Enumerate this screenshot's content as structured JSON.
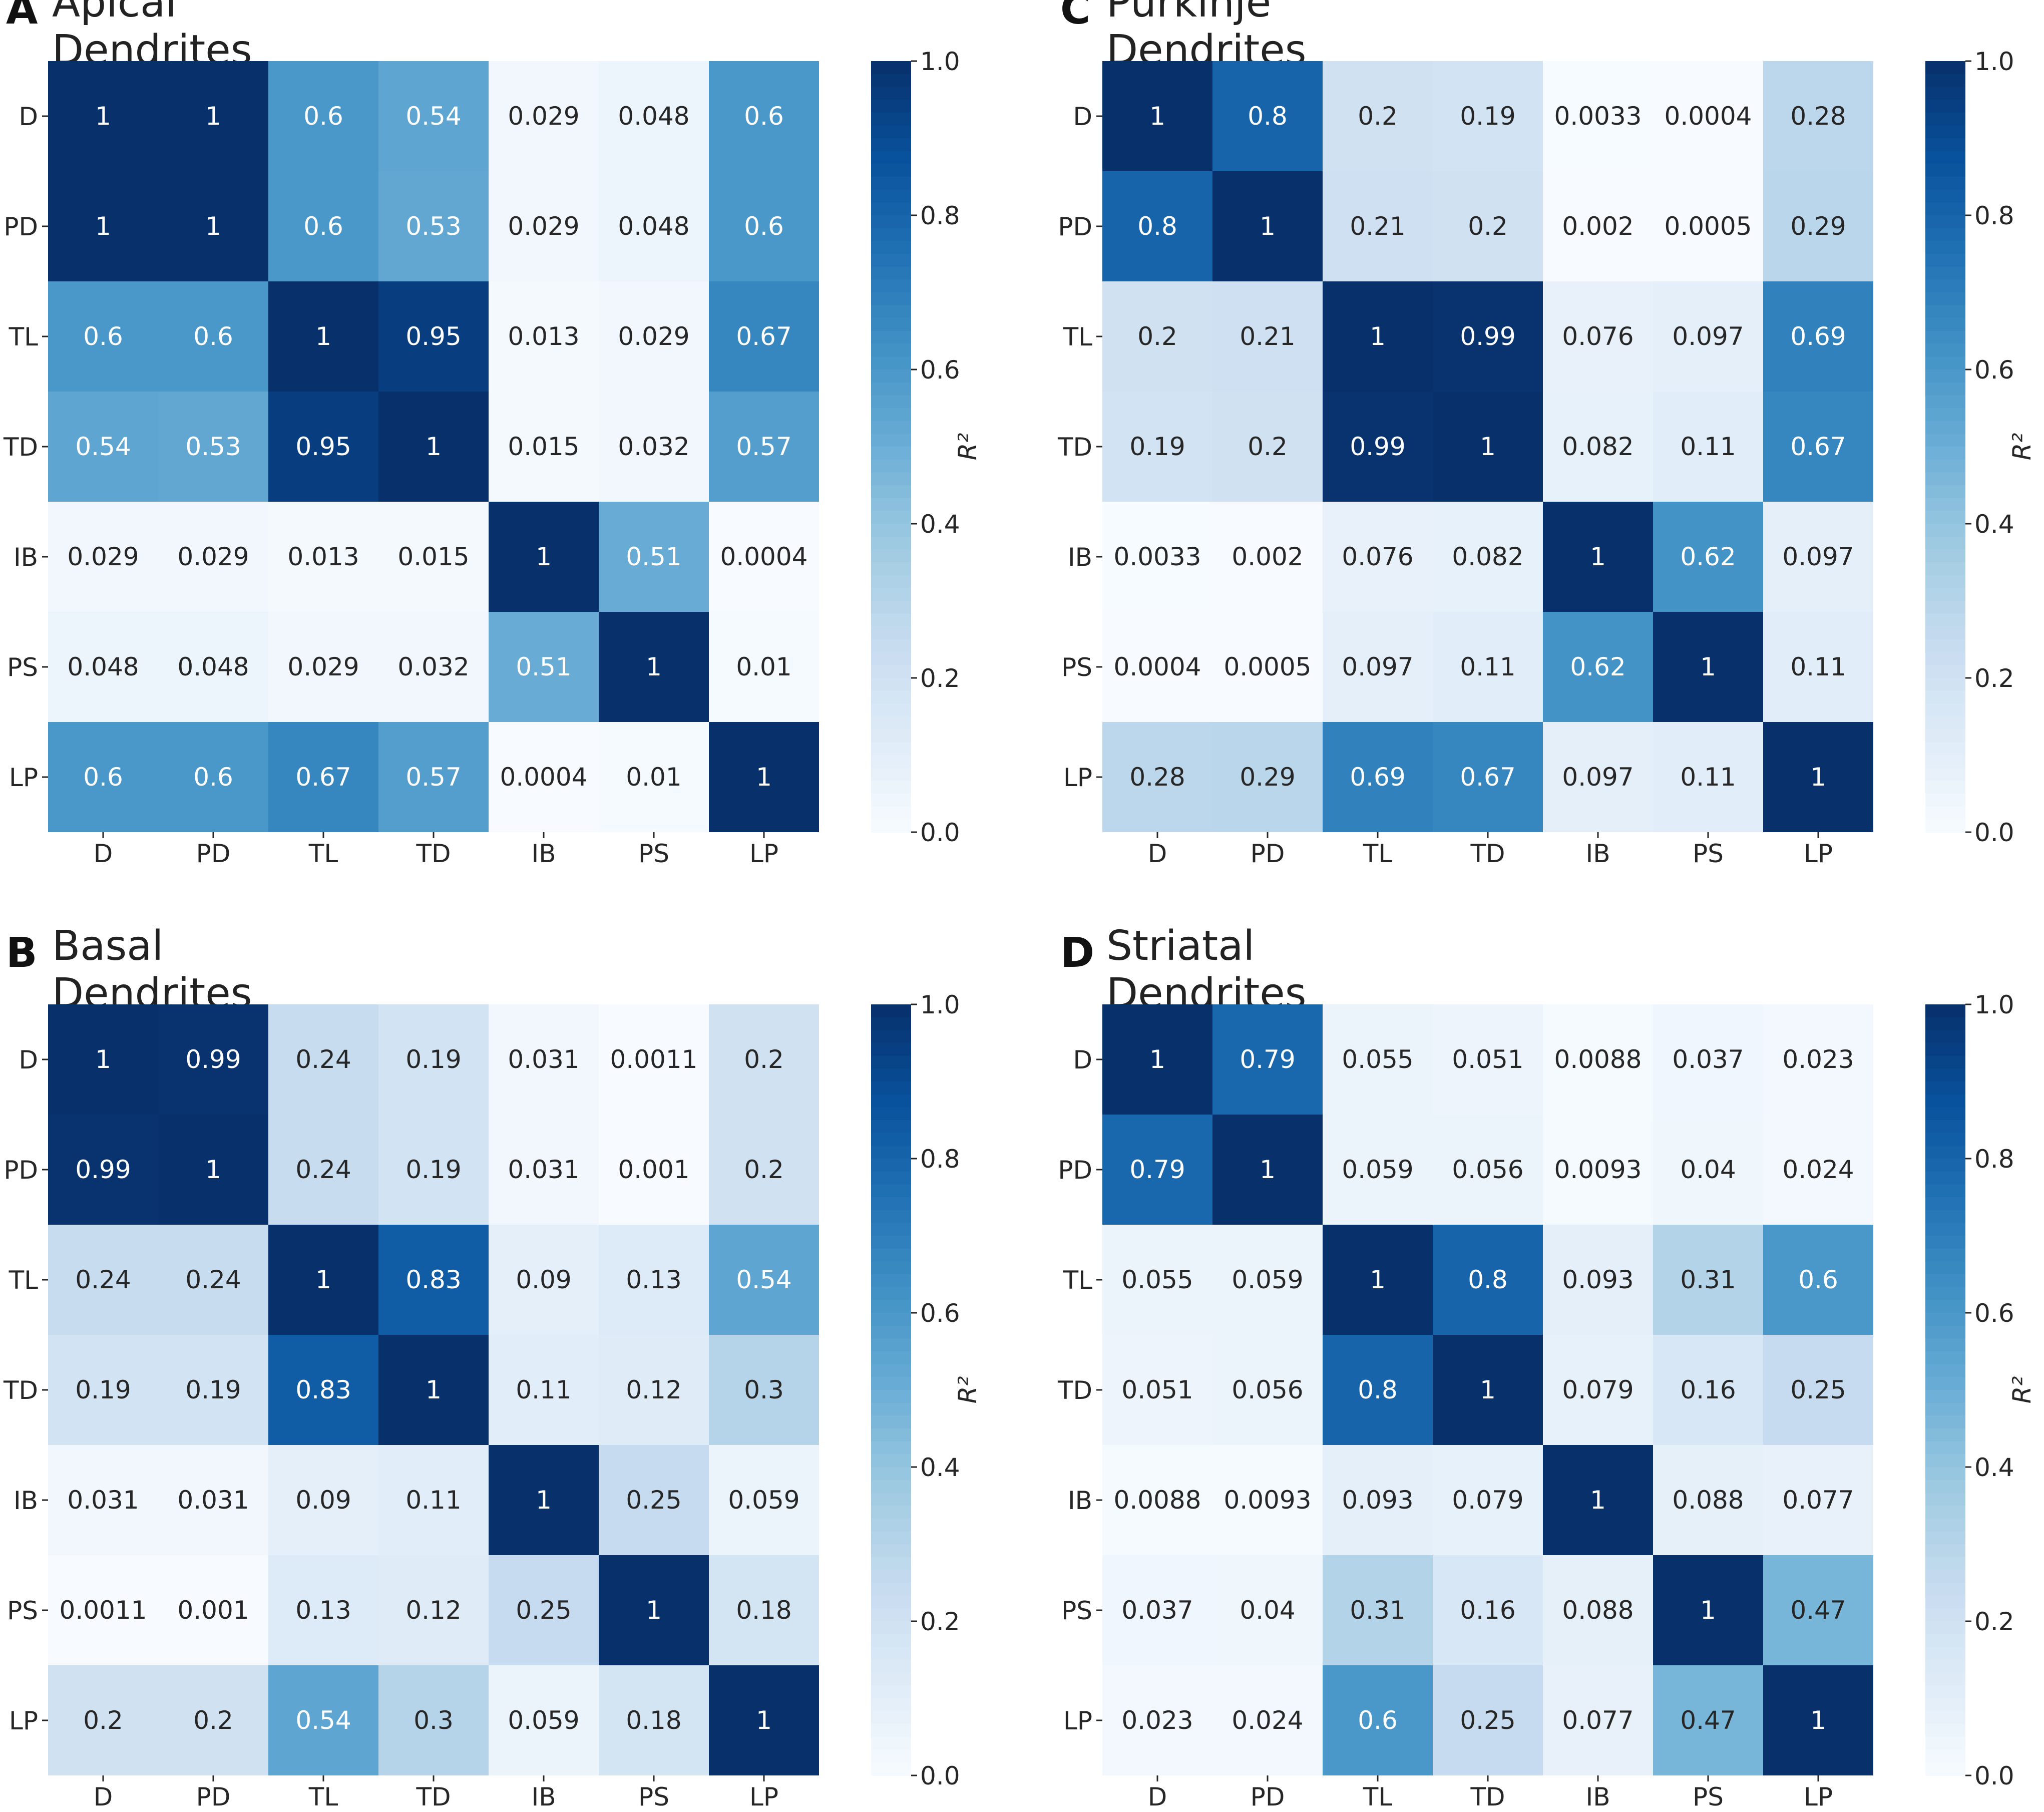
{
  "colorbar": {
    "label": "R²",
    "min": 0.0,
    "max": 1.0,
    "ticks": [
      "0.0",
      "0.2",
      "0.4",
      "0.6",
      "0.8",
      "1.0"
    ],
    "colormap": "Blues",
    "colors": [
      "#f7fbff",
      "#deebf7",
      "#c6dbef",
      "#9ecae1",
      "#6baed6",
      "#4292c6",
      "#2171b5",
      "#08519c",
      "#08306b"
    ]
  },
  "chart_data": [
    {
      "type": "heatmap",
      "letter": "A",
      "title": "Apical Dendrites",
      "x": [
        "D",
        "PD",
        "TL",
        "TD",
        "IB",
        "PS",
        "LP"
      ],
      "y": [
        "D",
        "PD",
        "TL",
        "TD",
        "IB",
        "PS",
        "LP"
      ],
      "values": [
        [
          1,
          1,
          0.6,
          0.54,
          0.029,
          0.048,
          0.6
        ],
        [
          1,
          1,
          0.6,
          0.53,
          0.029,
          0.048,
          0.6
        ],
        [
          0.6,
          0.6,
          1,
          0.95,
          0.013,
          0.029,
          0.67
        ],
        [
          0.54,
          0.53,
          0.95,
          1,
          0.015,
          0.032,
          0.57
        ],
        [
          0.029,
          0.029,
          0.013,
          0.015,
          1,
          0.51,
          0.0004
        ],
        [
          0.048,
          0.048,
          0.029,
          0.032,
          0.51,
          1,
          0.01
        ],
        [
          0.6,
          0.6,
          0.67,
          0.57,
          0.0004,
          0.01,
          1
        ]
      ],
      "labels": [
        [
          "1",
          "1",
          "0.6",
          "0.54",
          "0.029",
          "0.048",
          "0.6"
        ],
        [
          "1",
          "1",
          "0.6",
          "0.53",
          "0.029",
          "0.048",
          "0.6"
        ],
        [
          "0.6",
          "0.6",
          "1",
          "0.95",
          "0.013",
          "0.029",
          "0.67"
        ],
        [
          "0.54",
          "0.53",
          "0.95",
          "1",
          "0.015",
          "0.032",
          "0.57"
        ],
        [
          "0.029",
          "0.029",
          "0.013",
          "0.015",
          "1",
          "0.51",
          "0.0004"
        ],
        [
          "0.048",
          "0.048",
          "0.029",
          "0.032",
          "0.51",
          "1",
          "0.01"
        ],
        [
          "0.6",
          "0.6",
          "0.67",
          "0.57",
          "0.0004",
          "0.01",
          "1"
        ]
      ]
    },
    {
      "type": "heatmap",
      "letter": "B",
      "title": "Basal Dendrites",
      "x": [
        "D",
        "PD",
        "TL",
        "TD",
        "IB",
        "PS",
        "LP"
      ],
      "y": [
        "D",
        "PD",
        "TL",
        "TD",
        "IB",
        "PS",
        "LP"
      ],
      "values": [
        [
          1,
          0.99,
          0.24,
          0.19,
          0.031,
          0.0011,
          0.2
        ],
        [
          0.99,
          1,
          0.24,
          0.19,
          0.031,
          0.001,
          0.2
        ],
        [
          0.24,
          0.24,
          1,
          0.83,
          0.09,
          0.13,
          0.54
        ],
        [
          0.19,
          0.19,
          0.83,
          1,
          0.11,
          0.12,
          0.3
        ],
        [
          0.031,
          0.031,
          0.09,
          0.11,
          1,
          0.25,
          0.059
        ],
        [
          0.0011,
          0.001,
          0.13,
          0.12,
          0.25,
          1,
          0.18
        ],
        [
          0.2,
          0.2,
          0.54,
          0.3,
          0.059,
          0.18,
          1
        ]
      ],
      "labels": [
        [
          "1",
          "0.99",
          "0.24",
          "0.19",
          "0.031",
          "0.0011",
          "0.2"
        ],
        [
          "0.99",
          "1",
          "0.24",
          "0.19",
          "0.031",
          "0.001",
          "0.2"
        ],
        [
          "0.24",
          "0.24",
          "1",
          "0.83",
          "0.09",
          "0.13",
          "0.54"
        ],
        [
          "0.19",
          "0.19",
          "0.83",
          "1",
          "0.11",
          "0.12",
          "0.3"
        ],
        [
          "0.031",
          "0.031",
          "0.09",
          "0.11",
          "1",
          "0.25",
          "0.059"
        ],
        [
          "0.0011",
          "0.001",
          "0.13",
          "0.12",
          "0.25",
          "1",
          "0.18"
        ],
        [
          "0.2",
          "0.2",
          "0.54",
          "0.3",
          "0.059",
          "0.18",
          "1"
        ]
      ]
    },
    {
      "type": "heatmap",
      "letter": "C",
      "title": "Purkinje Dendrites",
      "x": [
        "D",
        "PD",
        "TL",
        "TD",
        "IB",
        "PS",
        "LP"
      ],
      "y": [
        "D",
        "PD",
        "TL",
        "TD",
        "IB",
        "PS",
        "LP"
      ],
      "values": [
        [
          1,
          0.8,
          0.2,
          0.19,
          0.0033,
          0.0004,
          0.28
        ],
        [
          0.8,
          1,
          0.21,
          0.2,
          0.002,
          0.0005,
          0.29
        ],
        [
          0.2,
          0.21,
          1,
          0.99,
          0.076,
          0.097,
          0.69
        ],
        [
          0.19,
          0.2,
          0.99,
          1,
          0.082,
          0.11,
          0.67
        ],
        [
          0.0033,
          0.002,
          0.076,
          0.082,
          1,
          0.62,
          0.097
        ],
        [
          0.0004,
          0.0005,
          0.097,
          0.11,
          0.62,
          1,
          0.11
        ],
        [
          0.28,
          0.29,
          0.69,
          0.67,
          0.097,
          0.11,
          1
        ]
      ],
      "labels": [
        [
          "1",
          "0.8",
          "0.2",
          "0.19",
          "0.0033",
          "0.0004",
          "0.28"
        ],
        [
          "0.8",
          "1",
          "0.21",
          "0.2",
          "0.002",
          "0.0005",
          "0.29"
        ],
        [
          "0.2",
          "0.21",
          "1",
          "0.99",
          "0.076",
          "0.097",
          "0.69"
        ],
        [
          "0.19",
          "0.2",
          "0.99",
          "1",
          "0.082",
          "0.11",
          "0.67"
        ],
        [
          "0.0033",
          "0.002",
          "0.076",
          "0.082",
          "1",
          "0.62",
          "0.097"
        ],
        [
          "0.0004",
          "0.0005",
          "0.097",
          "0.11",
          "0.62",
          "1",
          "0.11"
        ],
        [
          "0.28",
          "0.29",
          "0.69",
          "0.67",
          "0.097",
          "0.11",
          "1"
        ]
      ]
    },
    {
      "type": "heatmap",
      "letter": "D",
      "title": "Striatal Dendrites",
      "x": [
        "D",
        "PD",
        "TL",
        "TD",
        "IB",
        "PS",
        "LP"
      ],
      "y": [
        "D",
        "PD",
        "TL",
        "TD",
        "IB",
        "PS",
        "LP"
      ],
      "values": [
        [
          1,
          0.79,
          0.055,
          0.051,
          0.0088,
          0.037,
          0.023
        ],
        [
          0.79,
          1,
          0.059,
          0.056,
          0.0093,
          0.04,
          0.024
        ],
        [
          0.055,
          0.059,
          1,
          0.8,
          0.093,
          0.31,
          0.6
        ],
        [
          0.051,
          0.056,
          0.8,
          1,
          0.079,
          0.16,
          0.25
        ],
        [
          0.0088,
          0.0093,
          0.093,
          0.079,
          1,
          0.088,
          0.077
        ],
        [
          0.037,
          0.04,
          0.31,
          0.16,
          0.088,
          1,
          0.47
        ],
        [
          0.023,
          0.024,
          0.6,
          0.25,
          0.077,
          0.47,
          1
        ]
      ],
      "labels": [
        [
          "1",
          "0.79",
          "0.055",
          "0.051",
          "0.0088",
          "0.037",
          "0.023"
        ],
        [
          "0.79",
          "1",
          "0.059",
          "0.056",
          "0.0093",
          "0.04",
          "0.024"
        ],
        [
          "0.055",
          "0.059",
          "1",
          "0.8",
          "0.093",
          "0.31",
          "0.6"
        ],
        [
          "0.051",
          "0.056",
          "0.8",
          "1",
          "0.079",
          "0.16",
          "0.25"
        ],
        [
          "0.0088",
          "0.0093",
          "0.093",
          "0.079",
          "1",
          "0.088",
          "0.077"
        ],
        [
          "0.037",
          "0.04",
          "0.31",
          "0.16",
          "0.088",
          "1",
          "0.47"
        ],
        [
          "0.023",
          "0.024",
          "0.6",
          "0.25",
          "0.077",
          "0.47",
          "1"
        ]
      ]
    }
  ]
}
